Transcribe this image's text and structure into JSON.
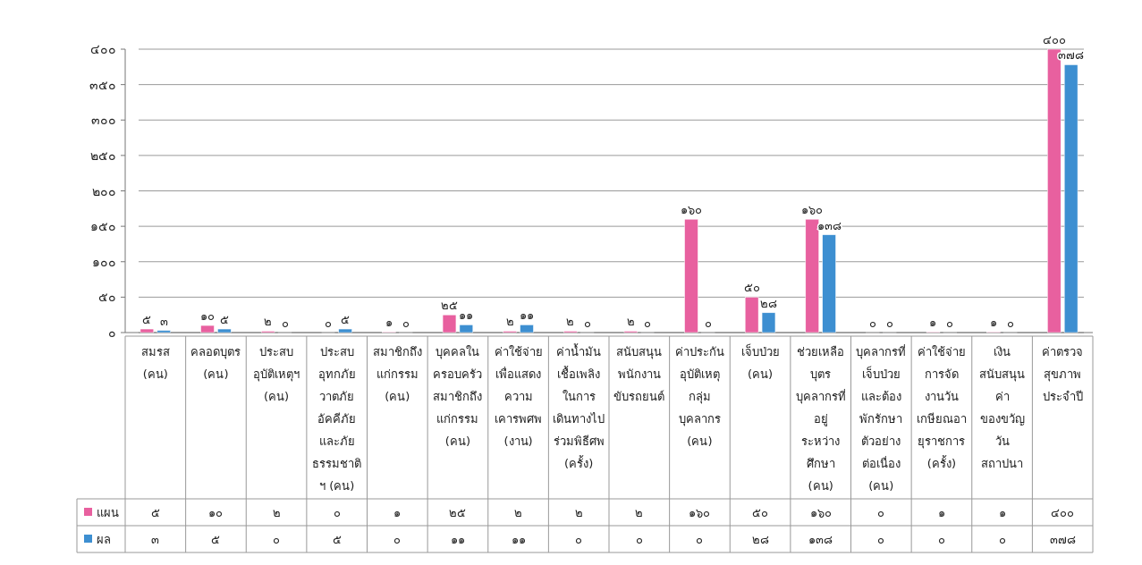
{
  "chart_data": {
    "type": "bar",
    "categories": [
      "สมรส\n(คน)",
      "คลอดบุตร\n(คน)",
      "ประสบ\nอุบัติเหตุฯ\n(คน)",
      "ประสบ\nอุทกภัย\nวาตภัย\nอัคคีภัย\nและภัย\nธรรมชาติ\nฯ (คน)",
      "สมาชิกถึง\nแก่กรรม\n(คน)",
      "บุคคลใน\nครอบครัว\nสมาชิกถึง\nแก่กรรม\n(คน)",
      "ค่าใช้จ่าย\nเพื่อแสดง\nความ\nเคารพศพ\n(งาน)",
      "ค่าน้ำมัน\nเชื้อเพลิง\nในการ\nเดินทางไป\nร่วมพิธีศพ\n(ครั้ง)",
      "สนับสนุน\nพนักงาน\nขับรถยนต์",
      "ค่าประกัน\nอุบัติเหตุ\nกลุ่ม\nบุคลากร\n(คน)",
      "เจ็บป่วย\n(คน)",
      "ช่วยเหลือ\nบุตร\nบุคลากรที่\nอยู่\nระหว่าง\nศึกษา\n(คน)",
      "บุคลากรที่\nเจ็บป่วย\nและต้อง\nพักรักษา\nตัวอย่าง\nต่อเนื่อง\n(คน)",
      "ค่าใช้จ่าย\nการจัด\nงานวัน\nเกษียณอา\nยุราชการ\n(ครั้ง)",
      "เงิน\nสนับสนุน\nค่า\nของขวัญ\nวัน\nสถาปนา",
      "ค่าตรวจ\nสุขภาพ\nประจำปี"
    ],
    "series": [
      {
        "name": "แผน",
        "color": "#e8609f",
        "values": [
          5,
          10,
          2,
          0,
          1,
          25,
          2,
          2,
          2,
          160,
          50,
          160,
          0,
          1,
          1,
          400
        ],
        "value_labels": [
          "๕",
          "๑๐",
          "๒",
          "๐",
          "๑",
          "๒๕",
          "๒",
          "๒",
          "๒",
          "๑๖๐",
          "๕๐",
          "๑๖๐",
          "๐",
          "๑",
          "๑",
          "๔๐๐"
        ]
      },
      {
        "name": "ผล",
        "color": "#3d8fd1",
        "values": [
          3,
          5,
          0,
          5,
          0,
          11,
          11,
          0,
          0,
          0,
          28,
          138,
          0,
          0,
          0,
          378
        ],
        "value_labels": [
          "๓",
          "๕",
          "๐",
          "๕",
          "๐",
          "๑๑",
          "๑๑",
          "๐",
          "๐",
          "๐",
          "๒๘",
          "๑๓๘",
          "๐",
          "๐",
          "๐",
          "๓๗๘"
        ]
      }
    ],
    "ylim": [
      0,
      400
    ],
    "yticks": [
      {
        "value": 0,
        "label": "๐"
      },
      {
        "value": 50,
        "label": "๕๐"
      },
      {
        "value": 100,
        "label": "๑๐๐"
      },
      {
        "value": 150,
        "label": "๑๕๐"
      },
      {
        "value": 200,
        "label": "๒๐๐"
      },
      {
        "value": 250,
        "label": "๒๕๐"
      },
      {
        "value": 300,
        "label": "๓๐๐"
      },
      {
        "value": 350,
        "label": "๓๕๐"
      },
      {
        "value": 400,
        "label": "๔๐๐"
      }
    ],
    "grid": "y",
    "legend": "bottom"
  }
}
